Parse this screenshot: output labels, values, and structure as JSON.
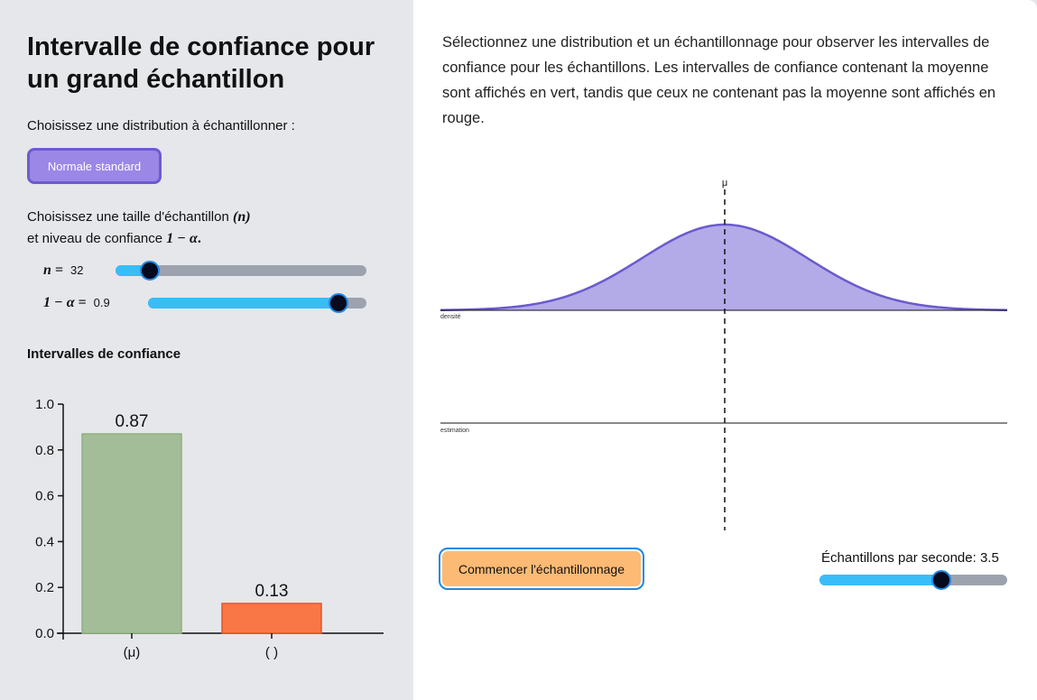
{
  "left": {
    "title": "Intervalle de confiance pour un grand échantillon",
    "distribution_prompt": "Choisissez une distribution à échantillonner :",
    "distribution_button": "Normale standard",
    "size_prompt_line1": "Choisissez une taille d'échantillon",
    "size_prompt_symbol": "(n)",
    "size_prompt_line2": "et niveau de confiance",
    "confidence_symbol": "1 − α",
    "confidence_symbol_dot": ".",
    "n_slider": {
      "label": "n =",
      "value": "32",
      "fraction": 0.135
    },
    "alpha_slider": {
      "label": "1 − α =",
      "value": "0.9",
      "fraction": 0.87
    },
    "chart_heading": "Intervalles de confiance"
  },
  "chart_data": {
    "type": "bar",
    "title": "Intervalles de confiance",
    "categories": [
      "(μ)",
      "( )"
    ],
    "values": [
      0.87,
      0.13
    ],
    "data_labels": [
      "0.87",
      "0.13"
    ],
    "colors": [
      "#a3bd98",
      "#f97746"
    ],
    "ylim": [
      0,
      1.0
    ],
    "yticks": [
      "0.0",
      "0.2",
      "0.4",
      "0.6",
      "0.8",
      "1.0"
    ],
    "xlabel": "",
    "ylabel": ""
  },
  "right": {
    "description": "Sélectionnez une distribution et un échantillonnage pour observer les intervalles de confiance pour les échantillons. Les intervalles de confiance contenant la moyenne sont affichés en vert, tandis que ceux ne contenant pas la moyenne sont affichés en rouge.",
    "mu_label": "μ",
    "density_label": "densité",
    "estimation_label": "estimation",
    "start_button": "Commencer l'échantillonnage",
    "rate_label": "Échantillons par seconde: 3.5",
    "rate_fraction": 0.65,
    "curve_fill": "#b3aae8",
    "curve_stroke": "#6a5acd"
  }
}
